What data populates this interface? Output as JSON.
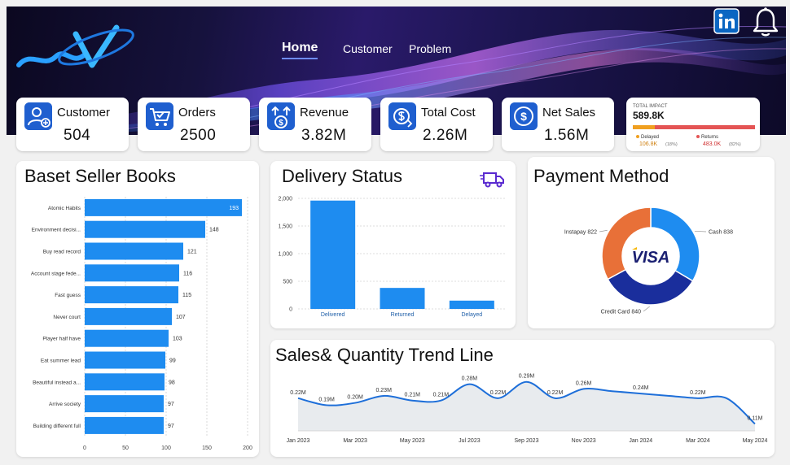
{
  "nav": {
    "items": [
      "Home",
      "Customer",
      "Problem"
    ]
  },
  "icons": {
    "logo": "logo-icon",
    "linkedin": "linkedin-icon",
    "bell": "bell-icon",
    "truck": "delivery-truck-icon",
    "visa": "visa-logo"
  },
  "kpis": [
    {
      "label": "Customer",
      "value": "504",
      "icon": "customer-icon"
    },
    {
      "label": "Orders",
      "value": "2500",
      "icon": "cart-icon"
    },
    {
      "label": "Revenue",
      "value": "3.82M",
      "icon": "revenue-icon"
    },
    {
      "label": "Total Cost",
      "value": "2.26M",
      "icon": "cost-icon"
    },
    {
      "label": "Net Sales",
      "value": "1.56M",
      "icon": "dollar-icon"
    }
  ],
  "impact": {
    "title": "TOTAL IMPACT",
    "value": "589.8K",
    "delayed_label": "Delayed",
    "delayed_value": "106.8K",
    "delayed_pct": "(18%)",
    "returns_label": "Returns",
    "returns_value": "483.0K",
    "returns_pct": "(82%)",
    "delayed_fraction": 0.18,
    "colors": {
      "delayed": "#f0a020",
      "returns": "#e45454"
    }
  },
  "colors": {
    "bar": "#1e8cf0",
    "donut_cash": "#1e8cf0",
    "donut_credit": "#1a2e9c",
    "donut_instapay": "#e87038",
    "line": "#1e6fd9",
    "area": "#e8ebee"
  },
  "chart_data": [
    {
      "type": "bar",
      "orientation": "horizontal",
      "title": "Baset Seller Books",
      "categories": [
        "Atomic Habits",
        "Environment decisi...",
        "Buy read record",
        "Account stage fede...",
        "Fast guess",
        "Never court",
        "Player half have",
        "Eat summer lead",
        "Beautiful instead a...",
        "Arrive society",
        "Building different full"
      ],
      "values": [
        193,
        148,
        121,
        116,
        115,
        107,
        103,
        99,
        98,
        97,
        97
      ],
      "xlim": [
        0,
        200
      ],
      "xticks": [
        0,
        50,
        100,
        150,
        200
      ],
      "grid": true
    },
    {
      "type": "bar",
      "title": "Delivery Status",
      "categories": [
        "Delivered",
        "Returned",
        "Delayed"
      ],
      "values": [
        1960,
        380,
        150
      ],
      "ylim": [
        0,
        2000
      ],
      "yticks": [
        0,
        500,
        1000,
        1500,
        2000
      ],
      "ytick_labels": [
        "0",
        "500",
        "1,000",
        "1,500",
        "2,000"
      ],
      "grid": true
    },
    {
      "type": "pie",
      "donut": true,
      "title": "Payment Method",
      "labels": [
        "Cash",
        "Credit Card",
        "Instapay"
      ],
      "values": [
        838,
        840,
        822
      ]
    },
    {
      "type": "area",
      "title": "Sales& Quantity Trend Line",
      "x": [
        "Jan 2023",
        "Feb 2023",
        "Mar 2023",
        "Apr 2023",
        "May 2023",
        "Jun 2023",
        "Jul 2023",
        "Aug 2023",
        "Sep 2023",
        "Oct 2023",
        "Nov 2023",
        "Dec 2023",
        "Jan 2024",
        "Feb 2024",
        "Mar 2024",
        "Apr 2024",
        "May 2024"
      ],
      "values": [
        0.22,
        0.19,
        0.2,
        0.23,
        0.21,
        0.21,
        0.28,
        0.22,
        0.29,
        0.22,
        0.26,
        0.25,
        0.24,
        0.23,
        0.22,
        0.22,
        0.11
      ],
      "point_labels": [
        "0.22M",
        "0.19M",
        "0.20M",
        "0.23M",
        "0.21M",
        "0.21M",
        "0.28M",
        "0.22M",
        "0.29M",
        "0.22M",
        "0.26M",
        "",
        "0.24M",
        "",
        "0.22M",
        "",
        "0.11M"
      ],
      "xtick_labels": [
        "Jan 2023",
        "Mar 2023",
        "May 2023",
        "Jul 2023",
        "Sep 2023",
        "Nov 2023",
        "Jan 2024",
        "Mar 2024",
        "May 2024"
      ],
      "xtick_index": [
        0,
        2,
        4,
        6,
        8,
        10,
        12,
        14,
        16
      ],
      "grid": false
    }
  ]
}
